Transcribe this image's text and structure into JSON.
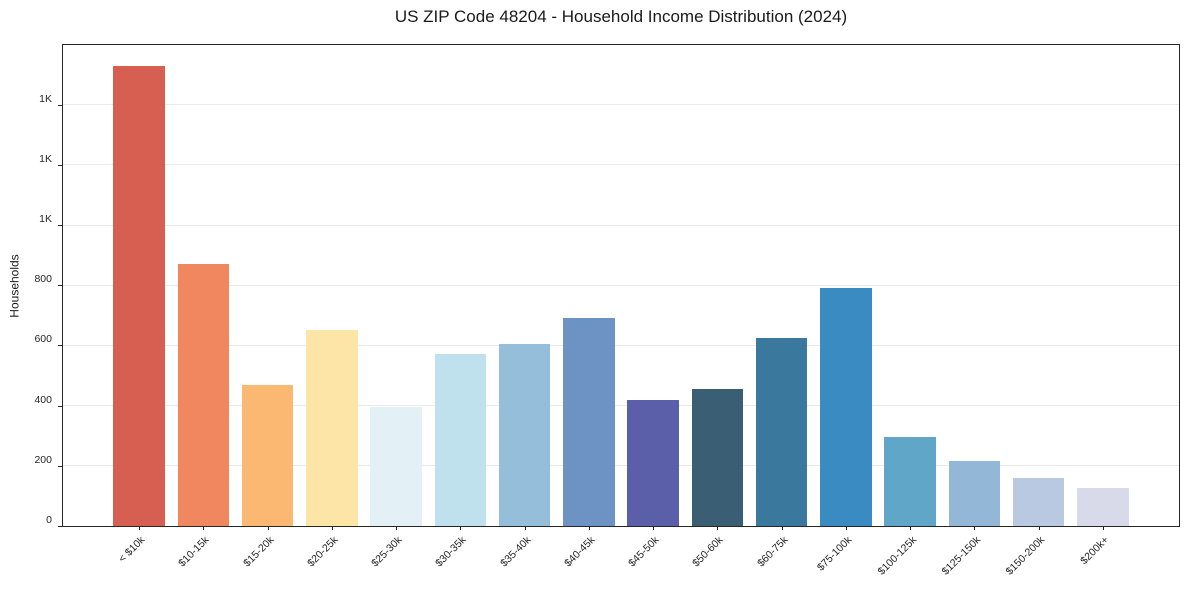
{
  "figure": {
    "title": "US ZIP Code 48204 - Household Income Distribution (2024)"
  },
  "chart_data": {
    "type": "bar",
    "title": "US ZIP Code 48204 - Household Income Distribution (2024)",
    "xlabel": "",
    "ylabel": "Households",
    "categories": [
      "< $10k",
      "$10-15k",
      "$15-20k",
      "$20-25k",
      "$25-30k",
      "$30-35k",
      "$35-40k",
      "$40-45k",
      "$45-50k",
      "$50-60k",
      "$60-75k",
      "$75-100k",
      "$100-125k",
      "$125-150k",
      "$150-200k",
      "$200k+"
    ],
    "values": [
      1530,
      870,
      470,
      650,
      395,
      570,
      605,
      690,
      420,
      455,
      625,
      790,
      295,
      215,
      160,
      125
    ],
    "bar_colors": [
      "#d65f51",
      "#f0875f",
      "#fbb873",
      "#fde5a7",
      "#e3f0f5",
      "#bfe0ed",
      "#95bedb",
      "#6d92c4",
      "#5b5ea9",
      "#3a5f74",
      "#3a789e",
      "#398bc1",
      "#60a6c9",
      "#92b7d7",
      "#bac9e2",
      "#d9dae9"
    ],
    "ylim": [
      0,
      1605
    ],
    "yticks": {
      "values": [
        0,
        200,
        400,
        600,
        800,
        1000,
        1200,
        1400
      ],
      "labels": [
        "0",
        "200",
        "400",
        "600",
        "800",
        "1K",
        "1K",
        "1K"
      ]
    },
    "grid": "horizontal-only",
    "legend": "none",
    "tick_label_rotation_deg": 45,
    "colors": {
      "background": "#ffffff",
      "spine": "#262626",
      "gridline": "#e9e9e9",
      "text": "#1a1a1a"
    }
  }
}
